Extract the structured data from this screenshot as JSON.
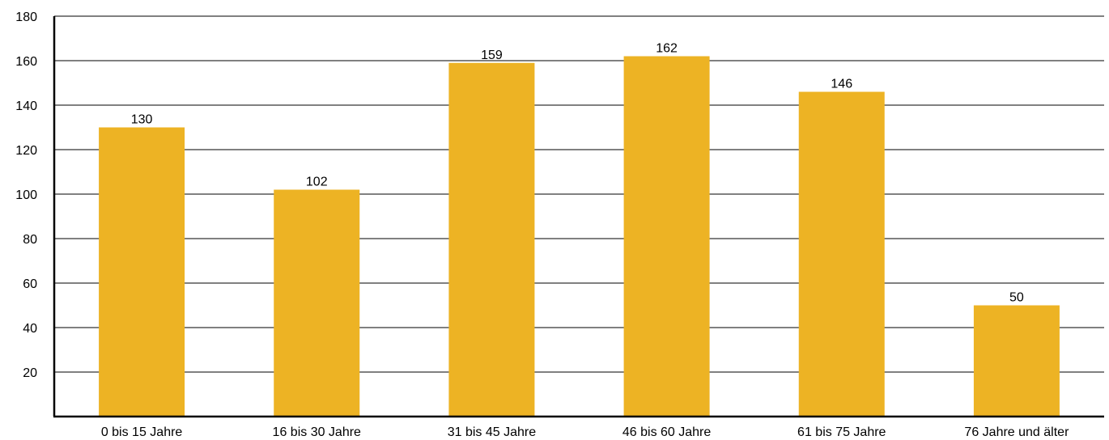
{
  "chart_data": {
    "type": "bar",
    "title": "",
    "xlabel": "",
    "ylabel": "",
    "categories": [
      "0 bis 15 Jahre",
      "16 bis 30 Jahre",
      "31 bis 45 Jahre",
      "46 bis 60 Jahre",
      "61 bis 75 Jahre",
      "76 Jahre und älter"
    ],
    "values": [
      130,
      102,
      159,
      162,
      146,
      50
    ],
    "data_labels": [
      "130",
      "102",
      "159",
      "162",
      "146",
      "50"
    ],
    "ylim": [
      0,
      180
    ],
    "yticks": [
      20,
      40,
      60,
      80,
      100,
      120,
      140,
      160,
      180
    ],
    "ytick_labels": [
      "20",
      "40",
      "60",
      "80",
      "100",
      "120",
      "140",
      "160",
      "180"
    ],
    "grid": true,
    "legend": "none",
    "bar_color": "#EDB324"
  }
}
